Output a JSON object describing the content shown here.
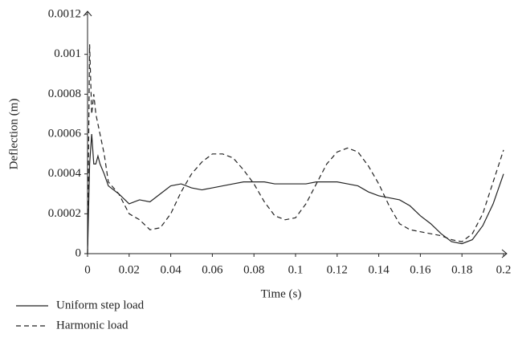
{
  "chart_data": {
    "type": "line",
    "x_label": "Time (s)",
    "y_label": "Deflection (m)",
    "x": [
      0,
      0.001,
      0.002,
      0.003,
      0.004,
      0.005,
      0.006,
      0.008,
      0.01,
      0.015,
      0.02,
      0.025,
      0.03,
      0.035,
      0.04,
      0.045,
      0.05,
      0.055,
      0.06,
      0.065,
      0.07,
      0.075,
      0.08,
      0.085,
      0.09,
      0.095,
      0.1,
      0.105,
      0.11,
      0.115,
      0.12,
      0.125,
      0.13,
      0.135,
      0.14,
      0.145,
      0.15,
      0.155,
      0.16,
      0.165,
      0.17,
      0.175,
      0.18,
      0.185,
      0.19,
      0.195,
      0.2
    ],
    "series": [
      {
        "name": "Uniform step load",
        "color": "#222222",
        "linestyle": "solid",
        "values": [
          0,
          0.00045,
          0.0006,
          0.00045,
          0.00045,
          0.00049,
          0.00045,
          0.0004,
          0.00034,
          0.0003,
          0.00025,
          0.00027,
          0.00026,
          0.0003,
          0.00034,
          0.00035,
          0.00033,
          0.00032,
          0.00033,
          0.00034,
          0.00035,
          0.00036,
          0.00036,
          0.00036,
          0.00035,
          0.00035,
          0.00035,
          0.00035,
          0.00036,
          0.00036,
          0.00036,
          0.00035,
          0.00034,
          0.00031,
          0.00029,
          0.00028,
          0.00027,
          0.00024,
          0.00019,
          0.00015,
          0.0001,
          6e-05,
          5e-05,
          7e-05,
          0.00014,
          0.00025,
          0.0004
        ]
      },
      {
        "name": "Harmonic load",
        "color": "#222222",
        "linestyle": "dashed",
        "values": [
          0,
          0.00105,
          0.0007,
          0.0008,
          0.0007,
          0.00065,
          0.0006,
          0.0005,
          0.00036,
          0.0003,
          0.0002,
          0.00017,
          0.00012,
          0.00013,
          0.0002,
          0.00031,
          0.0004,
          0.00046,
          0.0005,
          0.0005,
          0.00048,
          0.00042,
          0.00035,
          0.00026,
          0.00019,
          0.00017,
          0.00018,
          0.00025,
          0.00035,
          0.00045,
          0.00051,
          0.00053,
          0.00051,
          0.00044,
          0.00035,
          0.00024,
          0.00015,
          0.00012,
          0.00011,
          0.0001,
          9e-05,
          7e-05,
          6e-05,
          0.0001,
          0.0002,
          0.00036,
          0.00052
        ]
      }
    ],
    "xlim": [
      0,
      0.2
    ],
    "xticks": [
      0,
      0.02,
      0.04,
      0.06,
      0.08,
      0.1,
      0.12,
      0.14,
      0.16,
      0.18,
      0.2
    ],
    "ylim": [
      0,
      0.0012
    ],
    "yticks": [
      0,
      0.0002,
      0.0004,
      0.0006,
      0.0008,
      0.001,
      0.0012
    ],
    "grid": false,
    "legend": "bottom-left"
  }
}
